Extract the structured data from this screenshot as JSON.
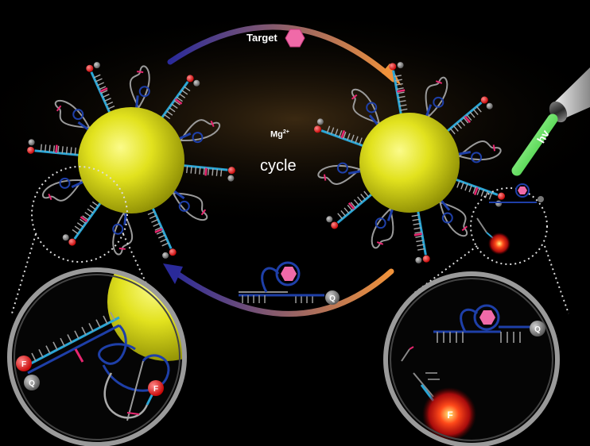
{
  "labels": {
    "target": "Target",
    "mg_base": "Mg",
    "mg_sup": "2+",
    "cycle": "cycle",
    "hv": "hv"
  },
  "markers": {
    "fluorophore": "F",
    "quencher": "Q"
  },
  "colors": {
    "background": "#000000",
    "gold_nanoparticle": "#d9d91a",
    "dna_strand": "#1e3fa8",
    "dna_cyan": "#2aa6d6",
    "dna_cut": "#e8266f",
    "target_hexagon": "#f06aa8",
    "fluorophore_red": "#e01818",
    "quencher_gray": "#7a7a7a",
    "laser_green": "#39e83a",
    "arrow_start": "#2a2a9a",
    "arrow_end": "#f0923a"
  },
  "icons": {
    "target": "hexagon-icon",
    "light_source": "laser-pointer-icon"
  }
}
